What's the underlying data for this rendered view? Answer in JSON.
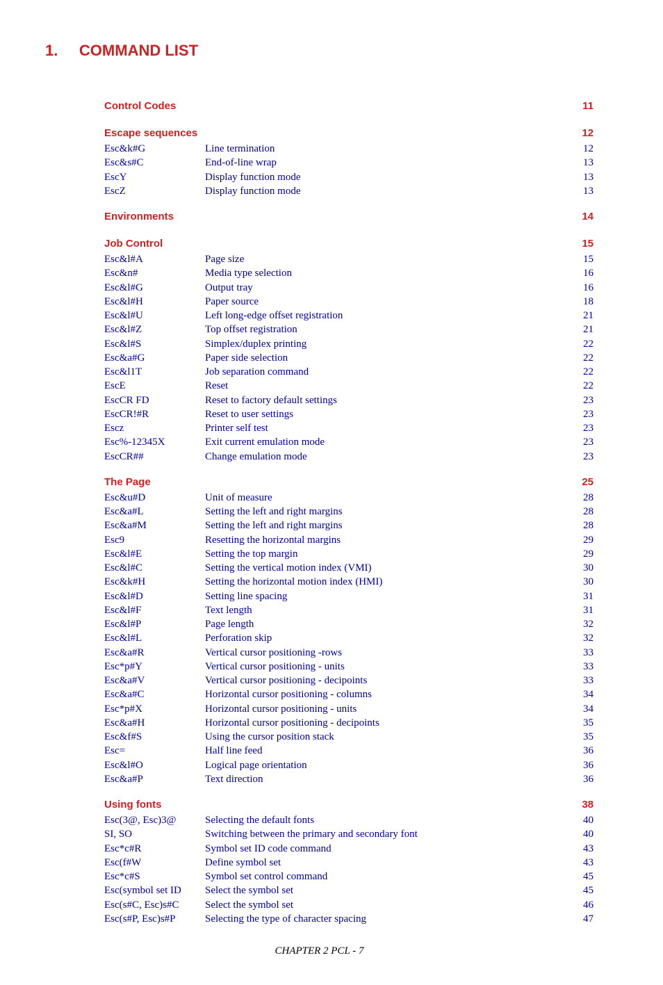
{
  "colors": {
    "accent": "#d02020",
    "link": "#0000a0",
    "text": "#000000",
    "background": "#ffffff"
  },
  "fonts": {
    "heading_family": "Arial, Helvetica, sans-serif",
    "body_family": "Times New Roman, Times, serif",
    "chapter_size_pt": 17,
    "section_size_pt": 11,
    "row_size_pt": 11
  },
  "chapter": {
    "number": "1.",
    "title": "COMMAND LIST"
  },
  "sections": [
    {
      "title": "Control Codes",
      "page": "11",
      "items": []
    },
    {
      "title": "Escape sequences",
      "page": "12",
      "items": [
        {
          "code": "Esc&k#G",
          "desc": "Line termination",
          "page": "12"
        },
        {
          "code": "Esc&s#C",
          "desc": "End-of-line wrap",
          "page": "13"
        },
        {
          "code": "EscY",
          "desc": "Display function mode",
          "page": "13"
        },
        {
          "code": "EscZ",
          "desc": "Display function mode",
          "page": "13"
        }
      ]
    },
    {
      "title": "Environments",
      "page": "14",
      "items": []
    },
    {
      "title": "Job Control",
      "page": "15",
      "items": [
        {
          "code": "Esc&l#A",
          "desc": "Page size",
          "page": "15"
        },
        {
          "code": "Esc&n#",
          "desc": "Media type selection",
          "page": "16"
        },
        {
          "code": "Esc&l#G",
          "desc": "Output tray",
          "page": "16"
        },
        {
          "code": "Esc&l#H",
          "desc": "Paper source",
          "page": "18"
        },
        {
          "code": "Esc&l#U",
          "desc": "Left long-edge offset registration",
          "page": "21"
        },
        {
          "code": "Esc&l#Z",
          "desc": "Top offset registration",
          "page": "21"
        },
        {
          "code": "Esc&l#S",
          "desc": "Simplex/duplex printing",
          "page": "22"
        },
        {
          "code": "Esc&a#G",
          "desc": "Paper side selection",
          "page": "22"
        },
        {
          "code": "Esc&l1T",
          "desc": "Job separation command",
          "page": "22"
        },
        {
          "code": "EscE",
          "desc": "Reset",
          "page": "22"
        },
        {
          "code": "EscCR FD",
          "desc": "Reset to factory default settings",
          "page": "23"
        },
        {
          "code": "EscCR!#R",
          "desc": "Reset to user settings",
          "page": "23"
        },
        {
          "code": "Escz",
          "desc": "Printer self test",
          "page": "23"
        },
        {
          "code": "Esc%-12345X",
          "desc": "Exit current emulation mode",
          "page": "23"
        },
        {
          "code": "EscCR##",
          "desc": "Change emulation mode",
          "page": "23"
        }
      ]
    },
    {
      "title": "The Page",
      "page": "25",
      "items": [
        {
          "code": "Esc&u#D",
          "desc": "Unit of measure",
          "page": "28"
        },
        {
          "code": "Esc&a#L",
          "desc": "Setting the left and right margins",
          "page": "28"
        },
        {
          "code": "Esc&a#M",
          "desc": "Setting the left and right margins",
          "page": "28"
        },
        {
          "code": "Esc9",
          "desc": "Resetting the horizontal margins",
          "page": "29"
        },
        {
          "code": "Esc&l#E",
          "desc": "Setting the top margin",
          "page": "29"
        },
        {
          "code": "Esc&l#C",
          "desc": "Setting the vertical motion index (VMI)",
          "page": "30"
        },
        {
          "code": "Esc&k#H",
          "desc": "Setting the horizontal motion index (HMI)",
          "page": "30"
        },
        {
          "code": "Esc&l#D",
          "desc": "Setting line spacing",
          "page": "31"
        },
        {
          "code": "Esc&l#F",
          "desc": "Text length",
          "page": "31"
        },
        {
          "code": "Esc&l#P",
          "desc": "Page length",
          "page": "32"
        },
        {
          "code": "Esc&l#L",
          "desc": "Perforation skip",
          "page": "32"
        },
        {
          "code": "Esc&a#R",
          "desc": "Vertical cursor positioning -rows",
          "page": "33"
        },
        {
          "code": "Esc*p#Y",
          "desc": "Vertical cursor positioning - units",
          "page": "33"
        },
        {
          "code": "Esc&a#V",
          "desc": "Vertical cursor positioning - decipoints",
          "page": "33"
        },
        {
          "code": "Esc&a#C",
          "desc": "Horizontal cursor positioning - columns",
          "page": "34"
        },
        {
          "code": "Esc*p#X",
          "desc": "Horizontal cursor positioning - units",
          "page": "34"
        },
        {
          "code": "Esc&a#H",
          "desc": "Horizontal cursor positioning - decipoints",
          "page": "35"
        },
        {
          "code": "Esc&f#S",
          "desc": "Using the cursor position stack",
          "page": "35"
        },
        {
          "code": "Esc=",
          "desc": "Half line feed",
          "page": "36"
        },
        {
          "code": "Esc&l#O",
          "desc": "Logical page orientation",
          "page": "36"
        },
        {
          "code": "Esc&a#P",
          "desc": "Text direction",
          "page": "36"
        }
      ]
    },
    {
      "title": "Using fonts",
      "page": "38",
      "items": [
        {
          "code": "Esc(3@, Esc)3@",
          "desc": "Selecting the default fonts",
          "page": "40"
        },
        {
          "code": "SI, SO",
          "desc": "Switching between the primary and secondary font",
          "page": "40"
        },
        {
          "code": "Esc*c#R",
          "desc": "Symbol set ID code command",
          "page": "43"
        },
        {
          "code": "Esc(f#W",
          "desc": "Define symbol set",
          "page": "43"
        },
        {
          "code": "Esc*c#S",
          "desc": "Symbol set control command",
          "page": "45"
        },
        {
          "code": "Esc(symbol set ID",
          "desc": "Select the symbol set",
          "page": "45"
        },
        {
          "code": "Esc(s#C, Esc)s#C",
          "desc": "Select the symbol set",
          "page": "46"
        },
        {
          "code": "Esc(s#P, Esc)s#P",
          "desc": "Selecting the type of character spacing",
          "page": "47"
        }
      ]
    }
  ],
  "footer": "CHAPTER 2 PCL - 7"
}
